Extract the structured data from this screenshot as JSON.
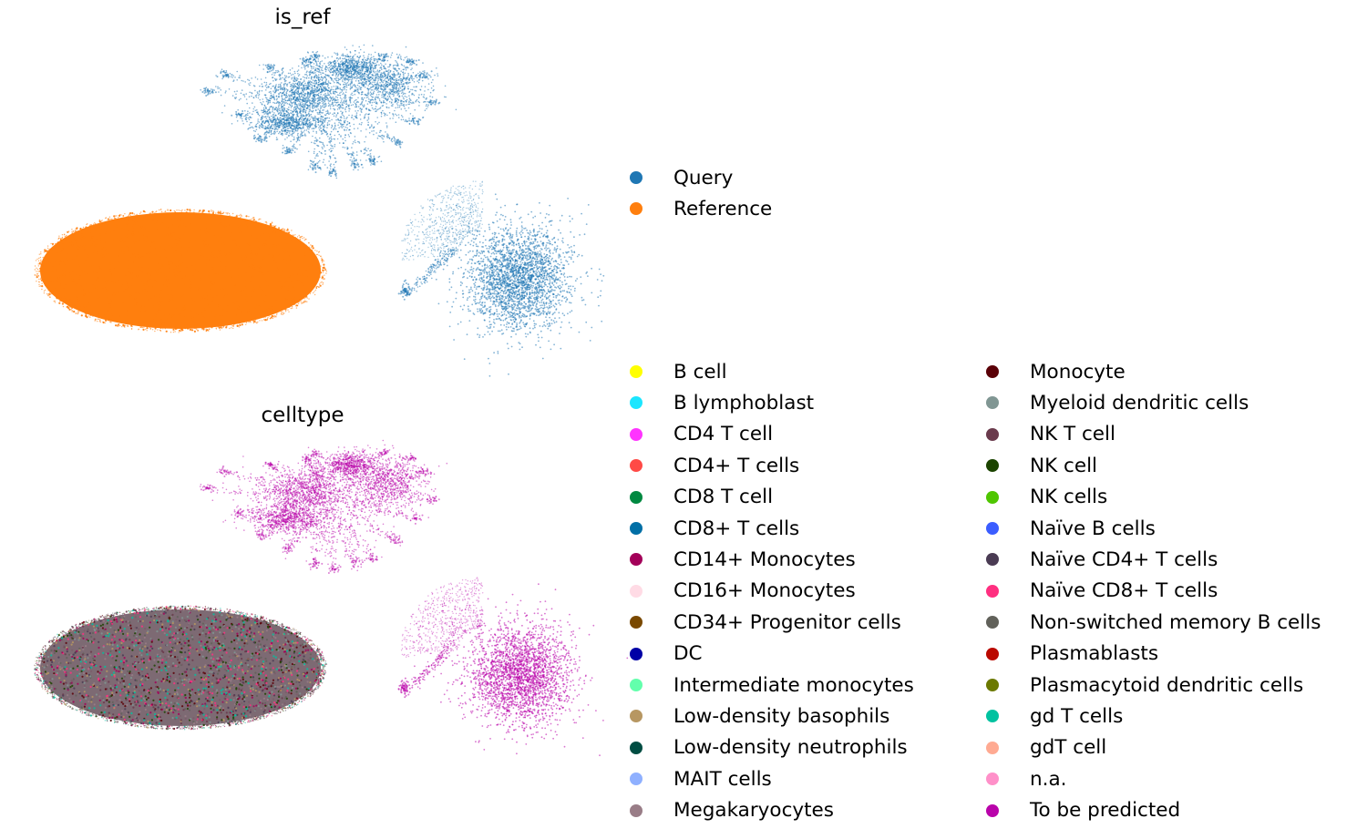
{
  "chart_data": [
    {
      "type": "scatter",
      "title": "is_ref",
      "legend_placement": "right",
      "series": [
        {
          "name": "Query",
          "color": "#1f77b4"
        },
        {
          "name": "Reference",
          "color": "#ff7f0e"
        }
      ],
      "axes": "off",
      "grid": false
    },
    {
      "type": "scatter",
      "title": "celltype",
      "legend_placement": "right",
      "series": [
        {
          "name": "B cell",
          "color": "#ffff00"
        },
        {
          "name": "B lymphoblast",
          "color": "#1ce6ff"
        },
        {
          "name": "CD4 T cell",
          "color": "#ff34ff"
        },
        {
          "name": "CD4+ T cells",
          "color": "#ff4a46"
        },
        {
          "name": "CD8 T cell",
          "color": "#008941"
        },
        {
          "name": "CD8+ T cells",
          "color": "#006fa6"
        },
        {
          "name": "CD14+ Monocytes",
          "color": "#a30059"
        },
        {
          "name": "CD16+ Monocytes",
          "color": "#ffdbe5"
        },
        {
          "name": "CD34+ Progenitor cells",
          "color": "#7a4900"
        },
        {
          "name": "DC",
          "color": "#0000a6"
        },
        {
          "name": "Intermediate monocytes",
          "color": "#63ffac"
        },
        {
          "name": "Low-density basophils",
          "color": "#b79762"
        },
        {
          "name": "Low-density neutrophils",
          "color": "#004d43"
        },
        {
          "name": "MAIT cells",
          "color": "#8fb0ff"
        },
        {
          "name": "Megakaryocytes",
          "color": "#997d87"
        },
        {
          "name": "Monocyte",
          "color": "#5a0007"
        },
        {
          "name": "Myeloid dendritic cells",
          "color": "#809693"
        },
        {
          "name": "NK T cell",
          "color": "#6a3a4c"
        },
        {
          "name": "NK cell",
          "color": "#1b4400"
        },
        {
          "name": "NK cells",
          "color": "#4fc601"
        },
        {
          "name": "Naïve B cells",
          "color": "#3b5dff"
        },
        {
          "name": "Naïve CD4+ T cells",
          "color": "#4a3b53"
        },
        {
          "name": "Naïve CD8+ T cells",
          "color": "#ff2f80"
        },
        {
          "name": "Non-switched memory B cells",
          "color": "#61615a"
        },
        {
          "name": "Plasmablasts",
          "color": "#ba0900"
        },
        {
          "name": "Plasmacytoid dendritic cells",
          "color": "#6b7900"
        },
        {
          "name": "gd T cells",
          "color": "#00c2a0"
        },
        {
          "name": "gdT cell",
          "color": "#ffaa92"
        },
        {
          "name": "n.a.",
          "color": "#ff90c9"
        },
        {
          "name": "To be predicted",
          "color": "#b903aa"
        }
      ],
      "axes": "off",
      "grid": false
    }
  ]
}
